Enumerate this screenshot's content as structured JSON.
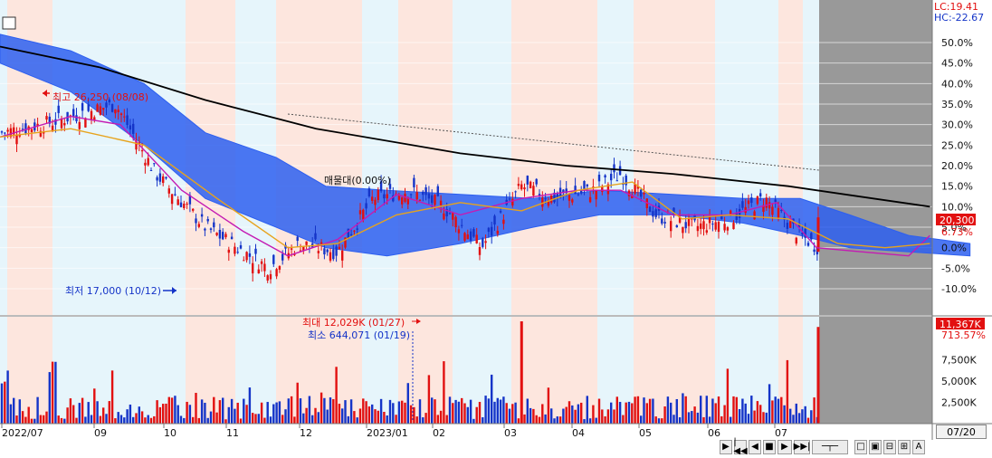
{
  "chart_data": {
    "type": "candlestick",
    "title": "",
    "x_range": [
      "2022/06/20",
      "2023/07/20"
    ],
    "month_labels": [
      "2022/07",
      "09",
      "10",
      "11",
      "12",
      "2023/01",
      "02",
      "03",
      "04",
      "05",
      "06",
      "07"
    ],
    "price_axis": {
      "ticks": [
        "50.0%",
        "45.0%",
        "40.0%",
        "35.0%",
        "30.0%",
        "25.0%",
        "20.0%",
        "15.0%",
        "10.0%",
        "5.0%",
        "0.0%",
        "-5.0%",
        "-10.0%"
      ],
      "current_price": "20,300",
      "current_pct": "6.73%",
      "lc": "LC:19.41",
      "hc": "HC:-22.67",
      "range_pct": [
        -10,
        50
      ]
    },
    "volume_axis": {
      "ticks": [
        "7,500K",
        "5,000K",
        "2,500K"
      ],
      "current_volume": "11,367K",
      "current_pct": "713.57%"
    },
    "annotations": {
      "high": "최고 26,250 (08/08)",
      "low": "최저 17,000 (10/12)",
      "vol_max": "최대 12,029K (01/27)",
      "vol_min": "최소 644,071 (01/19)",
      "overlay_label": "매물대(0.00%)"
    },
    "price_series": [
      {
        "name": "close",
        "x": [
          "2022-06-20",
          "2022-07-08",
          "2022-08-08",
          "2022-08-25",
          "2022-09-15",
          "2022-10-12",
          "2022-10-25",
          "2022-11-10",
          "2022-11-25",
          "2022-12-10",
          "2022-12-25",
          "2023-01-10",
          "2023-01-27",
          "2023-02-10",
          "2023-02-27",
          "2023-03-10",
          "2023-03-25",
          "2023-04-10",
          "2023-04-25",
          "2023-05-10",
          "2023-05-25",
          "2023-06-10",
          "2023-06-25",
          "2023-07-10",
          "2023-07-19"
        ],
        "y_pct": [
          28,
          30,
          35,
          18,
          5,
          -5,
          1,
          -1,
          12,
          14,
          10,
          0,
          15,
          12,
          14,
          18,
          8,
          5,
          7,
          12,
          3,
          -3,
          -2,
          -3,
          6.73
        ]
      },
      {
        "name": "ma_short",
        "x": [
          "2022-06-20",
          "2022-07-20",
          "2022-08-10",
          "2022-09-05",
          "2022-10-01",
          "2022-10-20",
          "2022-11-10",
          "2022-12-05",
          "2023-01-01",
          "2023-01-27",
          "2023-02-20",
          "2023-03-10",
          "2023-04-01",
          "2023-04-25",
          "2023-05-15",
          "2023-06-01",
          "2023-06-20",
          "2023-07-10",
          "2023-07-19"
        ],
        "y_pct": [
          27,
          32,
          30,
          14,
          4,
          -2,
          2,
          13,
          8,
          12,
          14,
          14,
          8,
          8,
          11,
          0,
          -1,
          -2,
          3
        ]
      },
      {
        "name": "ma_mid",
        "x": [
          "2022-06-20",
          "2022-07-20",
          "2022-08-20",
          "2022-09-20",
          "2022-10-20",
          "2022-11-10",
          "2022-12-05",
          "2023-01-01",
          "2023-01-27",
          "2023-02-20",
          "2023-03-15",
          "2023-04-05",
          "2023-04-25",
          "2023-05-20",
          "2023-06-10",
          "2023-06-30",
          "2023-07-19"
        ],
        "y_pct": [
          27,
          29,
          25,
          12,
          0,
          1,
          8,
          11,
          9,
          14,
          16,
          7,
          8,
          7,
          1,
          0,
          1
        ]
      },
      {
        "name": "ma_long",
        "x": [
          "2022-06-20",
          "2022-08-01",
          "2022-09-15",
          "2022-11-01",
          "2023-01-01",
          "2023-02-15",
          "2023-04-01",
          "2023-05-20",
          "2023-06-25",
          "2023-07-19"
        ],
        "y_pct": [
          49,
          44,
          36,
          29,
          23,
          20,
          18,
          15,
          12,
          10
        ]
      }
    ],
    "ichimoku_cloud": {
      "x": [
        "2022-06-20",
        "2022-07-20",
        "2022-08-20",
        "2022-09-15",
        "2022-10-15",
        "2022-11-05",
        "2022-12-01",
        "2023-01-01",
        "2023-02-01",
        "2023-03-01",
        "2023-04-01",
        "2023-05-01",
        "2023-05-25",
        "2023-06-15",
        "2023-07-10",
        "2023-08-05"
      ],
      "upper_pct": [
        52,
        48,
        40,
        28,
        22,
        15,
        14,
        13,
        12,
        14,
        13,
        12,
        12,
        8,
        3,
        1
      ],
      "lower_pct": [
        45,
        38,
        25,
        12,
        5,
        0,
        -2,
        1,
        5,
        8,
        8,
        6,
        3,
        0,
        -1,
        -2
      ]
    },
    "volume": {
      "x": [
        "2022-07",
        "2022-08",
        "2022-09",
        "2022-10",
        "2022-11",
        "2022-12",
        "2023-01",
        "2023-01-27",
        "2023-02",
        "2023-03",
        "2023-04",
        "2023-05",
        "2023-06",
        "2023-07",
        "2023-07-19"
      ],
      "values_k": [
        1500,
        2500,
        3000,
        2000,
        2500,
        3000,
        1500,
        12029,
        2500,
        4000,
        2000,
        2500,
        3000,
        1500,
        11367
      ]
    },
    "grid": true,
    "legend": "none"
  },
  "toolbar": {
    "date_box": "07/20",
    "buttons": [
      "▶",
      "|◀◀",
      "◀",
      "■",
      "▶",
      "▶▶|",
      "─┬─",
      "□",
      "▣",
      "⊟",
      "⊞",
      "A"
    ]
  },
  "colors": {
    "up": "#e21010",
    "down": "#1434c8",
    "cloud": "#2d5ff0",
    "ma_short": "#c41bb3",
    "ma_mid": "#e7a31c",
    "ma_long": "#000000",
    "band_red": "#fde6de",
    "band_blue": "#e6f5fb",
    "gray": "#999999"
  }
}
